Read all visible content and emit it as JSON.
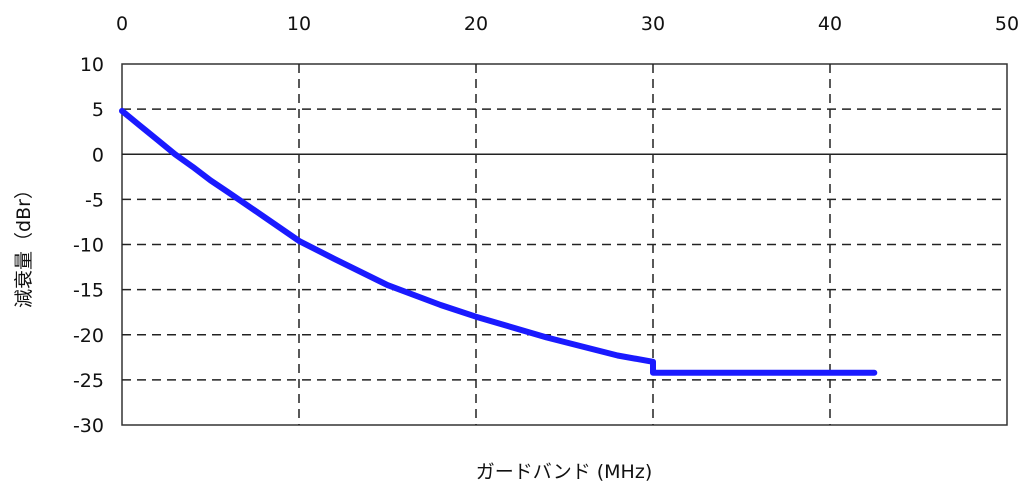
{
  "chart_data": {
    "type": "line",
    "title": "",
    "xlabel": "ガードバンド (MHz)",
    "ylabel": "減衰量（dBr）",
    "xlim": [
      0,
      50
    ],
    "ylim": [
      -30,
      10
    ],
    "x_ticks": [
      0,
      10,
      20,
      30,
      40,
      50
    ],
    "x_tick_labels": [
      "0",
      "10",
      "20",
      "30",
      "40",
      "50"
    ],
    "y_ticks": [
      10,
      5,
      0,
      -5,
      -10,
      -15,
      -20,
      -25,
      -30
    ],
    "y_tick_labels": [
      "10",
      "5",
      "0",
      "-5",
      "-10",
      "-15",
      "-20",
      "-25",
      "-30"
    ],
    "x_axis_position": "top",
    "grid": true,
    "grid_style": "dashed",
    "zero_line": true,
    "series": [
      {
        "color": "#1a1aff",
        "x": [
          0,
          1,
          2,
          3,
          4,
          5,
          6,
          8,
          10,
          12,
          15,
          18,
          20,
          24,
          28,
          30,
          30,
          35,
          40,
          42.5
        ],
        "y": [
          4.8,
          3.2,
          1.6,
          0.0,
          -1.4,
          -2.9,
          -4.2,
          -6.9,
          -9.6,
          -11.6,
          -14.5,
          -16.7,
          -18.0,
          -20.3,
          -22.3,
          -23.0,
          -24.2,
          -24.2,
          -24.2,
          -24.2
        ]
      }
    ]
  }
}
